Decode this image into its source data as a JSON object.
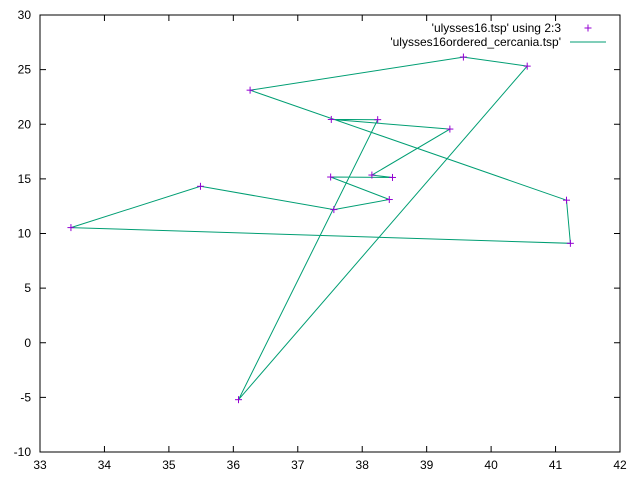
{
  "chart_data": {
    "type": "scatter",
    "title": "",
    "xlabel": "",
    "ylabel": "",
    "xlim": [
      33,
      42
    ],
    "ylim": [
      -10,
      30
    ],
    "xticks": [
      33,
      34,
      35,
      36,
      37,
      38,
      39,
      40,
      41,
      42
    ],
    "yticks": [
      -10,
      -5,
      0,
      5,
      10,
      15,
      20,
      25,
      30
    ],
    "grid": false,
    "legend_position": "top-right",
    "series": [
      {
        "name": "'ulysses16.tsp' using 2:3",
        "style": "points",
        "marker": "plus",
        "color": "#9400d3",
        "points": [
          [
            38.24,
            20.42
          ],
          [
            39.57,
            26.15
          ],
          [
            40.56,
            25.32
          ],
          [
            36.26,
            23.12
          ],
          [
            33.48,
            10.54
          ],
          [
            37.56,
            12.19
          ],
          [
            38.42,
            13.11
          ],
          [
            37.52,
            20.44
          ],
          [
            41.23,
            9.1
          ],
          [
            41.17,
            13.05
          ],
          [
            36.08,
            -5.21
          ],
          [
            38.47,
            15.13
          ],
          [
            38.15,
            15.35
          ],
          [
            37.51,
            15.17
          ],
          [
            35.49,
            14.32
          ],
          [
            39.36,
            19.56
          ]
        ]
      },
      {
        "name": "'ulysses16ordered_cercania.tsp'",
        "style": "lines",
        "color": "#009e73",
        "points": [
          [
            38.24,
            20.42
          ],
          [
            37.52,
            20.44
          ],
          [
            39.36,
            19.56
          ],
          [
            38.15,
            15.35
          ],
          [
            38.47,
            15.13
          ],
          [
            37.51,
            15.17
          ],
          [
            38.42,
            13.11
          ],
          [
            37.56,
            12.19
          ],
          [
            35.49,
            14.32
          ],
          [
            33.48,
            10.54
          ],
          [
            41.23,
            9.1
          ],
          [
            41.17,
            13.05
          ],
          [
            36.26,
            23.12
          ],
          [
            39.57,
            26.15
          ],
          [
            40.56,
            25.32
          ],
          [
            36.08,
            -5.21
          ],
          [
            38.24,
            20.42
          ]
        ]
      }
    ]
  }
}
